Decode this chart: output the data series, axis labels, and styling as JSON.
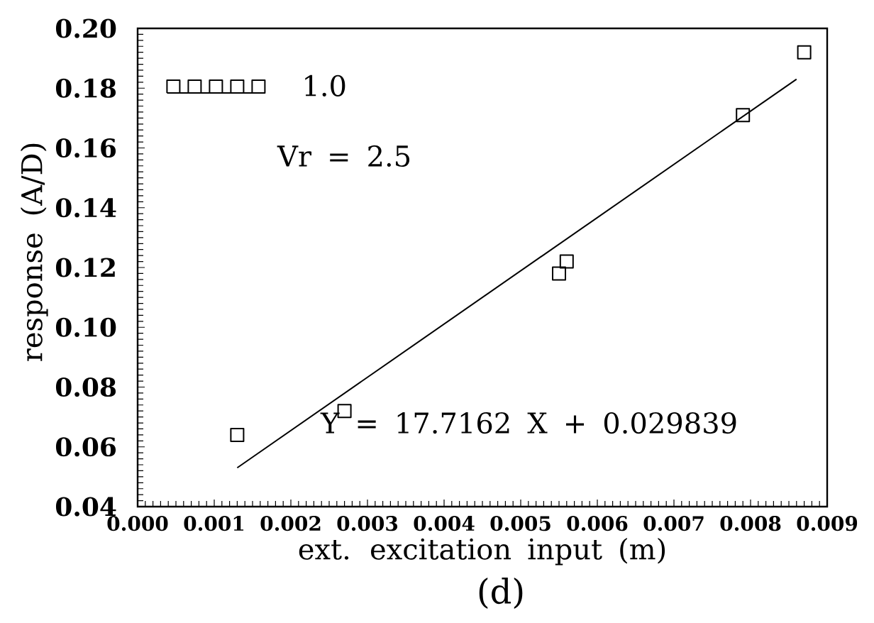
{
  "chart_data": {
    "type": "scatter",
    "xlabel": "ext. excitation input (m)",
    "ylabel": "response (A/D)",
    "annotations": [
      "Vr = 2.5",
      "Y = 17.7162 X + 0.029839",
      "(d)"
    ],
    "xlim": [
      0,
      0.009
    ],
    "ylim": [
      0.04,
      0.2
    ],
    "xticks": [
      {
        "value": 0,
        "label": "0.000"
      },
      {
        "value": 0.001,
        "label": "0.001"
      },
      {
        "value": 0.002,
        "label": "0.002"
      },
      {
        "value": 0.003,
        "label": "0.003"
      },
      {
        "value": 0.004,
        "label": "0.004"
      },
      {
        "value": 0.005,
        "label": "0.005"
      },
      {
        "value": 0.006,
        "label": "0.006"
      },
      {
        "value": 0.007,
        "label": "0.007"
      },
      {
        "value": 0.008,
        "label": "0.008"
      },
      {
        "value": 0.009,
        "label": "0.009"
      }
    ],
    "yticks": [
      {
        "value": 0.04,
        "label": "0.04"
      },
      {
        "value": 0.06,
        "label": "0.06"
      },
      {
        "value": 0.08,
        "label": "0.08"
      },
      {
        "value": 0.1,
        "label": "0.10"
      },
      {
        "value": 0.12,
        "label": "0.12"
      },
      {
        "value": 0.14,
        "label": "0.14"
      },
      {
        "value": 0.16,
        "label": "0.16"
      },
      {
        "value": 0.18,
        "label": "0.18"
      },
      {
        "value": 0.2,
        "label": "0.20"
      }
    ],
    "legend": "top left",
    "marker": "square",
    "series": [
      {
        "name": "1.0",
        "color": "#000000",
        "x": [
          0.0013,
          0.0027,
          0.0055,
          0.0056,
          0.0079,
          0.0087
        ],
        "values": [
          0.064,
          0.072,
          0.118,
          0.122,
          0.171,
          0.192
        ]
      },
      {
        "type": "line",
        "color": "#000000",
        "marker": "none",
        "line_style": "solid",
        "x": [
          0.0013,
          0.0086
        ],
        "values": [
          0.053,
          0.183
        ]
      }
    ]
  }
}
